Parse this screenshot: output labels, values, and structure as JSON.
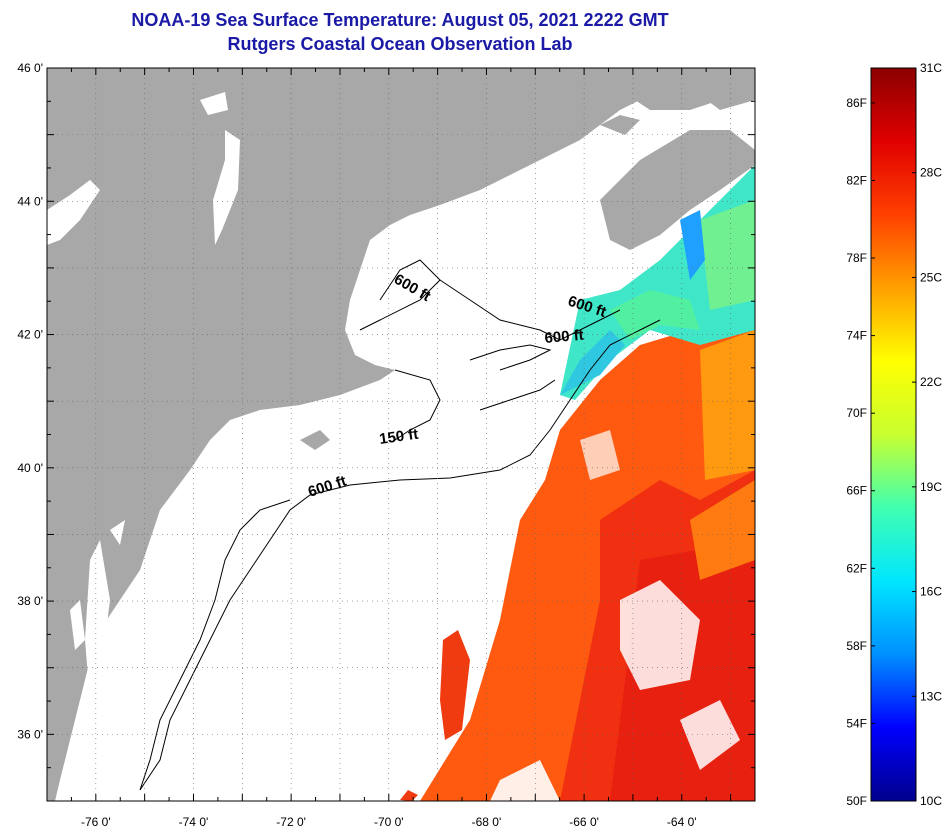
{
  "title": {
    "line1": "NOAA-19 Sea Surface Temperature:  August 05, 2021 2222 GMT",
    "line2": "Rutgers Coastal Ocean Observation Lab"
  },
  "map": {
    "lon_range": [
      -77,
      -62.5
    ],
    "lat_range": [
      35,
      46
    ],
    "lon_ticks": [
      {
        "value": -76,
        "label": "-76 0'"
      },
      {
        "value": -74,
        "label": "-74 0'"
      },
      {
        "value": -72,
        "label": "-72 0'"
      },
      {
        "value": -70,
        "label": "-70 0'"
      },
      {
        "value": -68,
        "label": "-68 0'"
      },
      {
        "value": -66,
        "label": "-66 0'"
      },
      {
        "value": -64,
        "label": "-64 0'"
      }
    ],
    "lat_ticks": [
      {
        "value": 46,
        "label": "46 0'"
      },
      {
        "value": 44,
        "label": "44 0'"
      },
      {
        "value": 42,
        "label": "42 0'"
      },
      {
        "value": 40,
        "label": "40 0'"
      },
      {
        "value": 38,
        "label": "38 0'"
      },
      {
        "value": 36,
        "label": "36 0'"
      }
    ],
    "contour_labels": [
      "600 ft",
      "600 ft",
      "600 ft",
      "150 ft",
      "600 ft"
    ],
    "colors": {
      "land": "#a8a8a8",
      "ocean": "#ffffff",
      "grid": "#555555"
    }
  },
  "colorbar": {
    "fahrenheit_labels": [
      "86F",
      "82F",
      "78F",
      "74F",
      "70F",
      "66F",
      "62F",
      "58F",
      "54F",
      "50F"
    ],
    "celsius_labels": [
      "31C",
      "28C",
      "25C",
      "22C",
      "19C",
      "16C",
      "13C",
      "10C"
    ],
    "min_c": 10,
    "max_c": 31,
    "gradient_stops": [
      "#00008b",
      "#0000ff",
      "#0090ff",
      "#00e6ff",
      "#40ffb0",
      "#c8ff30",
      "#ffff00",
      "#ffa000",
      "#ff4000",
      "#e00000",
      "#8b0000"
    ]
  }
}
